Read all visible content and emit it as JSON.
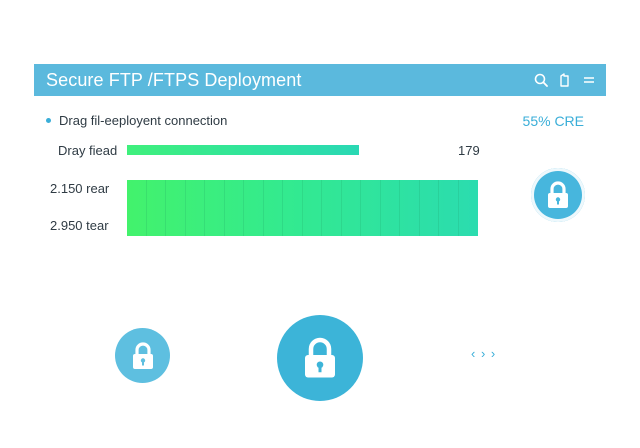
{
  "window": {
    "title": "Secure FTP /FTPS Deployment",
    "tools": [
      {
        "icon": "search-icon"
      },
      {
        "icon": "clipboard-icon"
      },
      {
        "icon": "menu-icon"
      }
    ]
  },
  "status": {
    "text": "Drag fil-eeployent connection",
    "percent_label": "55% CRE"
  },
  "rows": [
    {
      "label": "Dray fiead",
      "value": "179"
    },
    {
      "label": "2.150 rear"
    },
    {
      "label": "2.950 tear"
    }
  ],
  "icons": {
    "lock_right": "lock-icon",
    "lock_left": "lock-icon",
    "lock_center": "lock-icon",
    "code": "code-icon",
    "code_glyph": "‹ › ›"
  },
  "colors": {
    "accent": "#5bb9dd",
    "bar_start": "#43f26c",
    "bar_end": "#2bdcaf"
  }
}
